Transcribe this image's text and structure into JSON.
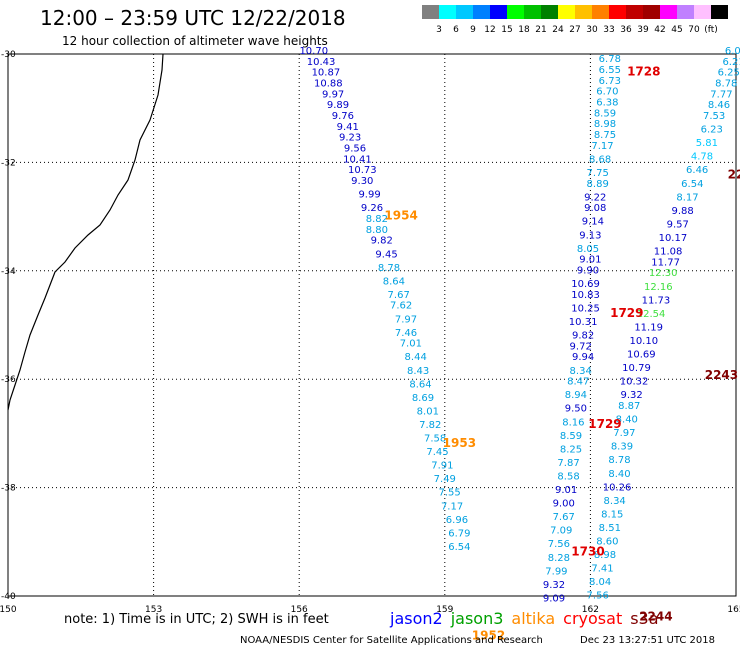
{
  "title": "12:00 – 23:59 UTC 12/22/2018",
  "subtitle": "12 hour collection of altimeter wave heights",
  "legend": {
    "colors": [
      "#808080",
      "#00ffff",
      "#00c8ff",
      "#0080ff",
      "#0000ff",
      "#00ff00",
      "#00c000",
      "#008000",
      "#ffff00",
      "#ffc000",
      "#ff8000",
      "#ff0000",
      "#c00000",
      "#a00000",
      "#ff00ff",
      "#c080ff",
      "#ffc0ff",
      "#000000"
    ],
    "labels": [
      "3",
      "6",
      "9",
      "12",
      "15",
      "18",
      "21",
      "24",
      "27",
      "30",
      "33",
      "36",
      "39",
      "42",
      "45",
      "70",
      "(ft)"
    ]
  },
  "chart_data": {
    "type": "map-track",
    "xlim": [
      150,
      165
    ],
    "ylim": [
      -40,
      -30
    ],
    "x_ticks": [
      "150",
      "153",
      "156",
      "159",
      "162",
      "165"
    ],
    "y_ticks": [
      "-30",
      "-32",
      "-34",
      "-36",
      "-38",
      "-40"
    ],
    "tracks": [
      {
        "name": "track_A",
        "points": [
          {
            "lon": 156.3,
            "lat": -30.0,
            "v": "10.70",
            "c": "#0000c8"
          },
          {
            "lon": 156.45,
            "lat": -30.2,
            "v": "10.43",
            "c": "#0000c8"
          },
          {
            "lon": 156.55,
            "lat": -30.4,
            "v": "10.87",
            "c": "#0000c8"
          },
          {
            "lon": 156.6,
            "lat": -30.6,
            "v": "10.88",
            "c": "#0000c8"
          },
          {
            "lon": 156.7,
            "lat": -30.8,
            "v": "9.97",
            "c": "#0000c8"
          },
          {
            "lon": 156.8,
            "lat": -31.0,
            "v": "9.89",
            "c": "#0000c8"
          },
          {
            "lon": 156.9,
            "lat": -31.2,
            "v": "9.76",
            "c": "#0000c8"
          },
          {
            "lon": 157.0,
            "lat": -31.4,
            "v": "9.41",
            "c": "#0000c8"
          },
          {
            "lon": 157.05,
            "lat": -31.6,
            "v": "9.23",
            "c": "#0000c8"
          },
          {
            "lon": 157.15,
            "lat": -31.8,
            "v": "9.56",
            "c": "#0000c8"
          },
          {
            "lon": 157.2,
            "lat": -32.0,
            "v": "10.41",
            "c": "#0000c8"
          },
          {
            "lon": 157.3,
            "lat": -32.2,
            "v": "10.73",
            "c": "#0000c8"
          },
          {
            "lon": 157.3,
            "lat": -32.4,
            "v": "9.30",
            "c": "#0000c8"
          },
          {
            "lon": 157.45,
            "lat": -32.65,
            "v": "9.99",
            "c": "#0000c8"
          },
          {
            "lon": 157.5,
            "lat": -32.9,
            "v": "9.26",
            "c": "#0000c8"
          },
          {
            "lon": 157.6,
            "lat": -33.1,
            "v": "8.82",
            "c": "#00a0e0"
          },
          {
            "lon": 157.6,
            "lat": -33.3,
            "v": "8.80",
            "c": "#00a0e0"
          },
          {
            "lon": 157.7,
            "lat": -33.5,
            "v": "9.82",
            "c": "#0000c8"
          },
          {
            "lon": 157.8,
            "lat": -33.75,
            "v": "9.45",
            "c": "#0000c8"
          },
          {
            "lon": 157.85,
            "lat": -34.0,
            "v": "8.78",
            "c": "#00a0e0"
          },
          {
            "lon": 157.95,
            "lat": -34.25,
            "v": "8.64",
            "c": "#00a0e0"
          },
          {
            "lon": 158.05,
            "lat": -34.5,
            "v": "7.67",
            "c": "#00a0e0"
          },
          {
            "lon": 158.1,
            "lat": -34.7,
            "v": "7.62",
            "c": "#00a0e0"
          },
          {
            "lon": 158.2,
            "lat": -34.95,
            "v": "7.97",
            "c": "#00a0e0"
          },
          {
            "lon": 158.2,
            "lat": -35.2,
            "v": "7.46",
            "c": "#00a0e0"
          },
          {
            "lon": 158.3,
            "lat": -35.4,
            "v": "7.01",
            "c": "#00a0e0"
          },
          {
            "lon": 158.4,
            "lat": -35.65,
            "v": "8.44",
            "c": "#00a0e0"
          },
          {
            "lon": 158.45,
            "lat": -35.9,
            "v": "8.43",
            "c": "#00a0e0"
          },
          {
            "lon": 158.5,
            "lat": -36.15,
            "v": "8.64",
            "c": "#00a0e0"
          },
          {
            "lon": 158.55,
            "lat": -36.4,
            "v": "8.69",
            "c": "#00a0e0"
          },
          {
            "lon": 158.65,
            "lat": -36.65,
            "v": "8.01",
            "c": "#00a0e0"
          },
          {
            "lon": 158.7,
            "lat": -36.9,
            "v": "7.82",
            "c": "#00a0e0"
          },
          {
            "lon": 158.8,
            "lat": -37.15,
            "v": "7.58",
            "c": "#00a0e0"
          },
          {
            "lon": 158.85,
            "lat": -37.4,
            "v": "7.45",
            "c": "#00a0e0"
          },
          {
            "lon": 158.95,
            "lat": -37.65,
            "v": "7.91",
            "c": "#00a0e0"
          },
          {
            "lon": 159.0,
            "lat": -37.9,
            "v": "7.49",
            "c": "#00a0e0"
          },
          {
            "lon": 159.1,
            "lat": -38.15,
            "v": "7.55",
            "c": "#00a0e0"
          },
          {
            "lon": 159.15,
            "lat": -38.4,
            "v": "7.17",
            "c": "#00a0e0"
          },
          {
            "lon": 159.25,
            "lat": -38.65,
            "v": "6.96",
            "c": "#00a0e0"
          },
          {
            "lon": 159.3,
            "lat": -38.9,
            "v": "6.79",
            "c": "#00a0e0"
          },
          {
            "lon": 159.3,
            "lat": -39.15,
            "v": "6.54",
            "c": "#00a0e0"
          }
        ]
      },
      {
        "name": "track_B",
        "points": [
          {
            "lon": 162.4,
            "lat": -30.15,
            "v": "6.78",
            "c": "#00a0e0"
          },
          {
            "lon": 162.4,
            "lat": -30.35,
            "v": "6.55",
            "c": "#00a0e0"
          },
          {
            "lon": 162.4,
            "lat": -30.55,
            "v": "6.73",
            "c": "#00a0e0"
          },
          {
            "lon": 162.35,
            "lat": -30.75,
            "v": "6.70",
            "c": "#00a0e0"
          },
          {
            "lon": 162.35,
            "lat": -30.95,
            "v": "6.38",
            "c": "#00a0e0"
          },
          {
            "lon": 162.3,
            "lat": -31.15,
            "v": "8.59",
            "c": "#00a0e0"
          },
          {
            "lon": 162.3,
            "lat": -31.35,
            "v": "8.98",
            "c": "#00a0e0"
          },
          {
            "lon": 162.3,
            "lat": -31.55,
            "v": "8.75",
            "c": "#00a0e0"
          },
          {
            "lon": 162.25,
            "lat": -31.75,
            "v": "7.17",
            "c": "#00a0e0"
          },
          {
            "lon": 162.2,
            "lat": -32.0,
            "v": "8.68",
            "c": "#00a0e0"
          },
          {
            "lon": 162.15,
            "lat": -32.25,
            "v": "7.75",
            "c": "#00a0e0"
          },
          {
            "lon": 162.15,
            "lat": -32.45,
            "v": "8.89",
            "c": "#00a0e0"
          },
          {
            "lon": 162.1,
            "lat": -32.7,
            "v": "9.22",
            "c": "#0000c8"
          },
          {
            "lon": 162.1,
            "lat": -32.9,
            "v": "9.08",
            "c": "#0000c8"
          },
          {
            "lon": 162.05,
            "lat": -33.15,
            "v": "9.14",
            "c": "#0000c8"
          },
          {
            "lon": 162.0,
            "lat": -33.4,
            "v": "9.13",
            "c": "#0000c8"
          },
          {
            "lon": 161.95,
            "lat": -33.65,
            "v": "8.05",
            "c": "#00a0e0"
          },
          {
            "lon": 162.0,
            "lat": -33.85,
            "v": "9.01",
            "c": "#0000c8"
          },
          {
            "lon": 161.95,
            "lat": -34.05,
            "v": "9.90",
            "c": "#0000c8"
          },
          {
            "lon": 161.9,
            "lat": -34.3,
            "v": "10.69",
            "c": "#0000c8"
          },
          {
            "lon": 161.9,
            "lat": -34.5,
            "v": "10.83",
            "c": "#0000c8"
          },
          {
            "lon": 161.9,
            "lat": -34.75,
            "v": "10.25",
            "c": "#0000c8"
          },
          {
            "lon": 161.85,
            "lat": -35.0,
            "v": "10.31",
            "c": "#0000c8"
          },
          {
            "lon": 161.85,
            "lat": -35.25,
            "v": "9.82",
            "c": "#0000c8"
          },
          {
            "lon": 161.8,
            "lat": -35.45,
            "v": "9.72",
            "c": "#0000c8"
          },
          {
            "lon": 161.85,
            "lat": -35.65,
            "v": "9.94",
            "c": "#0000c8"
          },
          {
            "lon": 161.8,
            "lat": -35.9,
            "v": "8.34",
            "c": "#00a0e0"
          },
          {
            "lon": 161.75,
            "lat": -36.1,
            "v": "8.47",
            "c": "#00a0e0"
          },
          {
            "lon": 161.7,
            "lat": -36.35,
            "v": "8.94",
            "c": "#00a0e0"
          },
          {
            "lon": 161.7,
            "lat": -36.6,
            "v": "9.50",
            "c": "#0000c8"
          },
          {
            "lon": 161.65,
            "lat": -36.85,
            "v": "8.16",
            "c": "#00a0e0"
          },
          {
            "lon": 161.6,
            "lat": -37.1,
            "v": "8.59",
            "c": "#00a0e0"
          },
          {
            "lon": 161.6,
            "lat": -37.35,
            "v": "8.25",
            "c": "#00a0e0"
          },
          {
            "lon": 161.55,
            "lat": -37.6,
            "v": "7.87",
            "c": "#00a0e0"
          },
          {
            "lon": 161.55,
            "lat": -37.85,
            "v": "8.58",
            "c": "#00a0e0"
          },
          {
            "lon": 161.5,
            "lat": -38.1,
            "v": "9.01",
            "c": "#0000c8"
          },
          {
            "lon": 161.45,
            "lat": -38.35,
            "v": "9.00",
            "c": "#0000c8"
          },
          {
            "lon": 161.45,
            "lat": -38.6,
            "v": "7.67",
            "c": "#00a0e0"
          },
          {
            "lon": 161.4,
            "lat": -38.85,
            "v": "7.09",
            "c": "#00a0e0"
          },
          {
            "lon": 161.35,
            "lat": -39.1,
            "v": "7.56",
            "c": "#00a0e0"
          },
          {
            "lon": 161.35,
            "lat": -39.35,
            "v": "8.28",
            "c": "#00a0e0"
          },
          {
            "lon": 161.3,
            "lat": -39.6,
            "v": "7.99",
            "c": "#00a0e0"
          },
          {
            "lon": 161.25,
            "lat": -39.85,
            "v": "9.32",
            "c": "#0000c8"
          },
          {
            "lon": 161.25,
            "lat": -40.1,
            "v": "9.09",
            "c": "#0000c8"
          }
        ]
      },
      {
        "name": "track_C",
        "points": [
          {
            "lon": 165.0,
            "lat": -30.0,
            "v": "6.03",
            "c": "#00a0e0"
          },
          {
            "lon": 164.95,
            "lat": -30.2,
            "v": "6.21",
            "c": "#00a0e0"
          },
          {
            "lon": 164.85,
            "lat": -30.4,
            "v": "6.25",
            "c": "#00a0e0"
          },
          {
            "lon": 164.8,
            "lat": -30.6,
            "v": "8.78",
            "c": "#00a0e0"
          },
          {
            "lon": 164.7,
            "lat": -30.8,
            "v": "7.77",
            "c": "#00a0e0"
          },
          {
            "lon": 164.65,
            "lat": -31.0,
            "v": "8.46",
            "c": "#00a0e0"
          },
          {
            "lon": 164.55,
            "lat": -31.2,
            "v": "7.53",
            "c": "#00a0e0"
          },
          {
            "lon": 164.5,
            "lat": -31.45,
            "v": "6.23",
            "c": "#00a0e0"
          },
          {
            "lon": 164.4,
            "lat": -31.7,
            "v": "5.81",
            "c": "#00c8ff"
          },
          {
            "lon": 164.3,
            "lat": -31.95,
            "v": "4.78",
            "c": "#00c8ff"
          },
          {
            "lon": 164.2,
            "lat": -32.2,
            "v": "6.46",
            "c": "#00a0e0"
          },
          {
            "lon": 164.1,
            "lat": -32.45,
            "v": "6.54",
            "c": "#00a0e0"
          },
          {
            "lon": 164.0,
            "lat": -32.7,
            "v": "8.17",
            "c": "#00a0e0"
          },
          {
            "lon": 163.9,
            "lat": -32.95,
            "v": "9.88",
            "c": "#0000c8"
          },
          {
            "lon": 163.8,
            "lat": -33.2,
            "v": "9.57",
            "c": "#0000c8"
          },
          {
            "lon": 163.7,
            "lat": -33.45,
            "v": "10.17",
            "c": "#0000c8"
          },
          {
            "lon": 163.6,
            "lat": -33.7,
            "v": "11.08",
            "c": "#0000c8"
          },
          {
            "lon": 163.55,
            "lat": -33.9,
            "v": "11.77",
            "c": "#0000c8"
          },
          {
            "lon": 163.5,
            "lat": -34.1,
            "v": "12.30",
            "c": "#40e040"
          },
          {
            "lon": 163.4,
            "lat": -34.35,
            "v": "12.16",
            "c": "#40e040"
          },
          {
            "lon": 163.35,
            "lat": -34.6,
            "v": "11.73",
            "c": "#0000c8"
          },
          {
            "lon": 163.25,
            "lat": -34.85,
            "v": "12.54",
            "c": "#40e040"
          },
          {
            "lon": 163.2,
            "lat": -35.1,
            "v": "11.19",
            "c": "#0000c8"
          },
          {
            "lon": 163.1,
            "lat": -35.35,
            "v": "10.10",
            "c": "#0000c8"
          },
          {
            "lon": 163.05,
            "lat": -35.6,
            "v": "10.69",
            "c": "#0000c8"
          },
          {
            "lon": 162.95,
            "lat": -35.85,
            "v": "10.79",
            "c": "#0000c8"
          },
          {
            "lon": 162.9,
            "lat": -36.1,
            "v": "10.32",
            "c": "#0000c8"
          },
          {
            "lon": 162.85,
            "lat": -36.35,
            "v": "9.32",
            "c": "#0000c8"
          },
          {
            "lon": 162.8,
            "lat": -36.55,
            "v": "8.87",
            "c": "#00a0e0"
          },
          {
            "lon": 162.75,
            "lat": -36.8,
            "v": "8.40",
            "c": "#00a0e0"
          },
          {
            "lon": 162.7,
            "lat": -37.05,
            "v": "7.97",
            "c": "#00a0e0"
          },
          {
            "lon": 162.65,
            "lat": -37.3,
            "v": "8.39",
            "c": "#00a0e0"
          },
          {
            "lon": 162.6,
            "lat": -37.55,
            "v": "8.78",
            "c": "#00a0e0"
          },
          {
            "lon": 162.6,
            "lat": -37.8,
            "v": "8.40",
            "c": "#00a0e0"
          },
          {
            "lon": 162.55,
            "lat": -38.05,
            "v": "10.26",
            "c": "#0000c8"
          },
          {
            "lon": 162.5,
            "lat": -38.3,
            "v": "8.34",
            "c": "#00a0e0"
          },
          {
            "lon": 162.45,
            "lat": -38.55,
            "v": "8.15",
            "c": "#00a0e0"
          },
          {
            "lon": 162.4,
            "lat": -38.8,
            "v": "8.51",
            "c": "#00a0e0"
          },
          {
            "lon": 162.35,
            "lat": -39.05,
            "v": "8.60",
            "c": "#00a0e0"
          },
          {
            "lon": 162.3,
            "lat": -39.3,
            "v": "8.98",
            "c": "#00a0e0"
          },
          {
            "lon": 162.25,
            "lat": -39.55,
            "v": "7.41",
            "c": "#00a0e0"
          },
          {
            "lon": 162.2,
            "lat": -39.8,
            "v": "8.04",
            "c": "#00a0e0"
          },
          {
            "lon": 162.15,
            "lat": -40.05,
            "v": "7.56",
            "c": "#00a0e0"
          }
        ]
      }
    ],
    "time_labels": [
      {
        "lon": 158.1,
        "lat": -33.05,
        "v": "1954",
        "c": "#ff8c00"
      },
      {
        "lon": 159.3,
        "lat": -37.25,
        "v": "1953",
        "c": "#ff8c00"
      },
      {
        "lon": 159.9,
        "lat": -40.8,
        "v": "1952",
        "c": "#ff8c00"
      },
      {
        "lon": 163.1,
        "lat": -30.4,
        "v": "1728",
        "c": "#e00000"
      },
      {
        "lon": 162.75,
        "lat": -34.85,
        "v": "1729",
        "c": "#e00000"
      },
      {
        "lon": 162.3,
        "lat": -36.9,
        "v": "1729",
        "c": "#e00000"
      },
      {
        "lon": 161.95,
        "lat": -39.25,
        "v": "1730",
        "c": "#e00000"
      },
      {
        "lon": 164.7,
        "lat": -36.0,
        "v": "2243",
        "c": "#800000"
      },
      {
        "lon": 165.0,
        "lat": -32.3,
        "v": "22",
        "c": "#800000"
      },
      {
        "lon": 163.35,
        "lat": -40.45,
        "v": "2244",
        "c": "#800000"
      }
    ]
  },
  "note": "note: 1) Time is in UTC; 2) SWH is in feet",
  "satellites": [
    {
      "name": "jason2",
      "color": "#0000ff"
    },
    {
      "name": "jason3",
      "color": "#00a000"
    },
    {
      "name": "altika",
      "color": "#ff8c00"
    },
    {
      "name": "cryosat",
      "color": "#ff0000"
    },
    {
      "name": "s3a",
      "color": "#800000"
    }
  ],
  "footer_left": "NOAA/NESDIS Center for Satellite Applications and Research",
  "footer_right": "Dec 23 13:27:51 UTC 2018"
}
